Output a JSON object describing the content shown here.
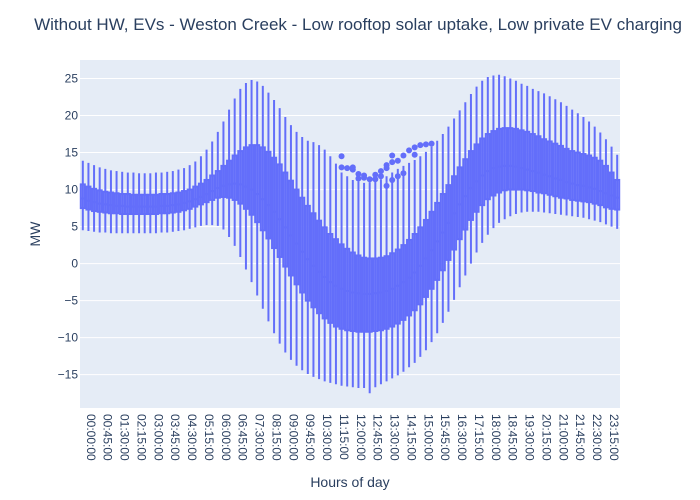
{
  "chart_data": {
    "type": "box",
    "title": "Without HW, EVs - Weston Creek - Low rooftop solar uptake, Low private EV charging",
    "xlabel": "Hours of day",
    "ylabel": "MW",
    "ylim": [
      -19.5,
      27.5
    ],
    "yticks": [
      25,
      20,
      15,
      10,
      5,
      0,
      -5,
      -10,
      -15
    ],
    "grid": true,
    "colors": {
      "series": "#636efa",
      "plot_bg": "#e5ecf6",
      "grid": "#ffffff",
      "text": "#2a3f5f"
    },
    "x_categories": [
      "00:00:00",
      "00:15:00",
      "00:30:00",
      "00:45:00",
      "01:00:00",
      "01:15:00",
      "01:30:00",
      "01:45:00",
      "02:00:00",
      "02:15:00",
      "02:30:00",
      "02:45:00",
      "03:00:00",
      "03:15:00",
      "03:30:00",
      "03:45:00",
      "04:00:00",
      "04:15:00",
      "04:30:00",
      "04:45:00",
      "05:00:00",
      "05:15:00",
      "05:30:00",
      "05:45:00",
      "06:00:00",
      "06:15:00",
      "06:30:00",
      "06:45:00",
      "07:00:00",
      "07:15:00",
      "07:30:00",
      "07:45:00",
      "08:00:00",
      "08:15:00",
      "08:30:00",
      "08:45:00",
      "09:00:00",
      "09:15:00",
      "09:30:00",
      "09:45:00",
      "10:00:00",
      "10:15:00",
      "10:30:00",
      "10:45:00",
      "11:00:00",
      "11:15:00",
      "11:30:00",
      "11:45:00",
      "12:00:00",
      "12:15:00",
      "12:30:00",
      "12:45:00",
      "13:00:00",
      "13:15:00",
      "13:30:00",
      "13:45:00",
      "14:00:00",
      "14:15:00",
      "14:30:00",
      "14:45:00",
      "15:00:00",
      "15:15:00",
      "15:30:00",
      "15:45:00",
      "16:00:00",
      "16:15:00",
      "16:30:00",
      "16:45:00",
      "17:00:00",
      "17:15:00",
      "17:30:00",
      "17:45:00",
      "18:00:00",
      "18:15:00",
      "18:30:00",
      "18:45:00",
      "19:00:00",
      "19:15:00",
      "19:30:00",
      "19:45:00",
      "20:00:00",
      "20:15:00",
      "20:30:00",
      "20:45:00",
      "21:00:00",
      "21:15:00",
      "21:30:00",
      "21:45:00",
      "22:00:00",
      "22:15:00",
      "22:30:00",
      "22:45:00",
      "23:00:00",
      "23:15:00",
      "23:30:00",
      "23:45:00"
    ],
    "x_tick_labels": [
      "00:00:00",
      "00:45:00",
      "01:30:00",
      "02:15:00",
      "03:00:00",
      "03:45:00",
      "04:30:00",
      "05:15:00",
      "06:00:00",
      "06:45:00",
      "07:30:00",
      "08:15:00",
      "09:00:00",
      "09:45:00",
      "10:30:00",
      "11:15:00",
      "12:00:00",
      "12:45:00",
      "13:30:00",
      "14:15:00",
      "15:00:00",
      "15:45:00",
      "16:30:00",
      "17:15:00",
      "18:00:00",
      "18:45:00",
      "19:30:00",
      "20:15:00",
      "21:00:00",
      "21:45:00",
      "22:30:00",
      "23:15:00"
    ],
    "series": [
      {
        "stats": [
          {
            "min": 4.5,
            "q1": 7.5,
            "median": 8.8,
            "q3": 10.7,
            "max": 13.9
          },
          {
            "min": 4.4,
            "q1": 7.3,
            "median": 8.5,
            "q3": 10.4,
            "max": 13.6
          },
          {
            "min": 4.3,
            "q1": 7.1,
            "median": 8.3,
            "q3": 10.1,
            "max": 13.3
          },
          {
            "min": 4.2,
            "q1": 7.0,
            "median": 8.1,
            "q3": 9.9,
            "max": 13.0
          },
          {
            "min": 4.2,
            "q1": 6.9,
            "median": 8.0,
            "q3": 9.7,
            "max": 12.8
          },
          {
            "min": 4.1,
            "q1": 6.8,
            "median": 7.9,
            "q3": 9.6,
            "max": 12.6
          },
          {
            "min": 4.1,
            "q1": 6.8,
            "median": 7.8,
            "q3": 9.5,
            "max": 12.5
          },
          {
            "min": 4.1,
            "q1": 6.7,
            "median": 7.8,
            "q3": 9.4,
            "max": 12.4
          },
          {
            "min": 4.1,
            "q1": 6.7,
            "median": 7.7,
            "q3": 9.4,
            "max": 12.3
          },
          {
            "min": 4.1,
            "q1": 6.7,
            "median": 7.7,
            "q3": 9.3,
            "max": 12.3
          },
          {
            "min": 4.1,
            "q1": 6.7,
            "median": 7.7,
            "q3": 9.3,
            "max": 12.2
          },
          {
            "min": 4.1,
            "q1": 6.7,
            "median": 7.7,
            "q3": 9.3,
            "max": 12.2
          },
          {
            "min": 4.1,
            "q1": 6.7,
            "median": 7.7,
            "q3": 9.3,
            "max": 12.2
          },
          {
            "min": 4.1,
            "q1": 6.7,
            "median": 7.7,
            "q3": 9.3,
            "max": 12.3
          },
          {
            "min": 4.2,
            "q1": 6.8,
            "median": 7.8,
            "q3": 9.4,
            "max": 12.3
          },
          {
            "min": 4.2,
            "q1": 6.8,
            "median": 7.8,
            "q3": 9.4,
            "max": 12.4
          },
          {
            "min": 4.3,
            "q1": 6.9,
            "median": 7.9,
            "q3": 9.5,
            "max": 12.5
          },
          {
            "min": 4.4,
            "q1": 7.0,
            "median": 8.0,
            "q3": 9.6,
            "max": 12.7
          },
          {
            "min": 4.5,
            "q1": 7.2,
            "median": 8.2,
            "q3": 9.8,
            "max": 12.9
          },
          {
            "min": 4.7,
            "q1": 7.4,
            "median": 8.4,
            "q3": 10.0,
            "max": 13.3
          },
          {
            "min": 4.9,
            "q1": 7.7,
            "median": 8.7,
            "q3": 10.4,
            "max": 13.8
          },
          {
            "min": 5.1,
            "q1": 8.0,
            "median": 9.0,
            "q3": 10.8,
            "max": 14.5
          },
          {
            "min": 5.2,
            "q1": 8.3,
            "median": 9.4,
            "q3": 11.3,
            "max": 15.4
          },
          {
            "min": 5.2,
            "q1": 8.6,
            "median": 9.8,
            "q3": 11.9,
            "max": 16.5
          },
          {
            "min": 5.1,
            "q1": 8.9,
            "median": 10.2,
            "q3": 12.5,
            "max": 17.8
          },
          {
            "min": 4.6,
            "q1": 9.0,
            "median": 10.5,
            "q3": 13.2,
            "max": 19.2
          },
          {
            "min": 3.6,
            "q1": 8.9,
            "median": 10.7,
            "q3": 13.9,
            "max": 20.8
          },
          {
            "min": 2.4,
            "q1": 8.6,
            "median": 10.8,
            "q3": 14.6,
            "max": 22.3
          },
          {
            "min": 0.9,
            "q1": 8.1,
            "median": 10.7,
            "q3": 15.2,
            "max": 23.6
          },
          {
            "min": -0.8,
            "q1": 7.4,
            "median": 10.4,
            "q3": 15.7,
            "max": 24.4
          },
          {
            "min": -2.5,
            "q1": 6.6,
            "median": 10.0,
            "q3": 16.0,
            "max": 24.8
          },
          {
            "min": -4.3,
            "q1": 5.6,
            "median": 9.4,
            "q3": 16.0,
            "max": 24.6
          },
          {
            "min": -6.1,
            "q1": 4.5,
            "median": 8.7,
            "q3": 15.7,
            "max": 24.0
          },
          {
            "min": -7.8,
            "q1": 3.4,
            "median": 7.9,
            "q3": 15.1,
            "max": 23.1
          },
          {
            "min": -9.4,
            "q1": 2.1,
            "median": 7.0,
            "q3": 14.3,
            "max": 22.1
          },
          {
            "min": -10.8,
            "q1": 0.9,
            "median": 6.0,
            "q3": 13.4,
            "max": 21.0
          },
          {
            "min": -12.0,
            "q1": -0.4,
            "median": 4.9,
            "q3": 12.3,
            "max": 19.8
          },
          {
            "min": -13.0,
            "q1": -1.6,
            "median": 3.8,
            "q3": 11.2,
            "max": 18.7
          },
          {
            "min": -13.8,
            "q1": -2.8,
            "median": 2.7,
            "q3": 10.0,
            "max": 17.8
          },
          {
            "min": -14.4,
            "q1": -3.9,
            "median": 1.6,
            "q3": 8.9,
            "max": 17.1
          },
          {
            "min": -14.9,
            "q1": -5.0,
            "median": 0.6,
            "q3": 7.8,
            "max": 16.6
          },
          {
            "min": -15.3,
            "q1": -5.9,
            "median": -0.3,
            "q3": 6.8,
            "max": 16.4
          },
          {
            "min": -15.6,
            "q1": -6.7,
            "median": -1.1,
            "q3": 5.8,
            "max": 16.0
          },
          {
            "min": -15.9,
            "q1": -7.4,
            "median": -1.8,
            "q3": 4.9,
            "max": 15.4
          },
          {
            "min": -16.1,
            "q1": -8.0,
            "median": -2.5,
            "q3": 4.0,
            "max": 14.5
          },
          {
            "min": -16.3,
            "q1": -8.5,
            "median": -3.0,
            "q3": 3.3,
            "max": 13.5
          },
          {
            "min": -16.5,
            "q1": -8.8,
            "median": -3.4,
            "q3": 2.6,
            "max": 12.3,
            "outliers": [
              13.0,
              14.5
            ]
          },
          {
            "min": -16.6,
            "q1": -9.0,
            "median": -3.7,
            "q3": 2.0,
            "max": 11.8,
            "outliers": [
              12.9
            ]
          },
          {
            "min": -16.7,
            "q1": -9.1,
            "median": -3.9,
            "q3": 1.5,
            "max": 11.3,
            "outliers": [
              12.7,
              13.0
            ]
          },
          {
            "min": -16.8,
            "q1": -9.2,
            "median": -4.0,
            "q3": 1.1,
            "max": 11.1,
            "outliers": [
              11.5,
              12.1
            ]
          },
          {
            "min": -16.8,
            "q1": -9.2,
            "median": -4.1,
            "q3": 0.8,
            "max": 10.9,
            "outliers": [
              11.6,
              11.9
            ]
          },
          {
            "min": -17.5,
            "q1": -9.2,
            "median": -4.1,
            "q3": 0.7,
            "max": 11.0,
            "outliers": [
              11.4
            ]
          },
          {
            "min": -16.7,
            "q1": -9.1,
            "median": -4.0,
            "q3": 0.7,
            "max": 11.2,
            "outliers": [
              11.4,
              12.0
            ]
          },
          {
            "min": -16.3,
            "q1": -9.0,
            "median": -3.9,
            "q3": 0.8,
            "max": 11.4,
            "outliers": [
              11.8,
              12.5
            ]
          },
          {
            "min": -15.9,
            "q1": -8.8,
            "median": -3.7,
            "q3": 1.0,
            "max": 11.8,
            "outliers": [
              12.9,
              13.3,
              10.5
            ]
          },
          {
            "min": -15.5,
            "q1": -8.5,
            "median": -3.4,
            "q3": 1.4,
            "max": 12.3,
            "outliers": [
              13.7,
              14.6,
              11.3
            ]
          },
          {
            "min": -15.1,
            "q1": -8.1,
            "median": -3.0,
            "q3": 1.9,
            "max": 12.8,
            "outliers": [
              13.9,
              11.8
            ]
          },
          {
            "min": -14.6,
            "q1": -7.6,
            "median": -2.5,
            "q3": 2.5,
            "max": 13.2,
            "outliers": [
              14.6,
              12.2
            ]
          },
          {
            "min": -14.0,
            "q1": -7.0,
            "median": -1.9,
            "q3": 3.2,
            "max": 13.6,
            "outliers": [
              15.3
            ]
          },
          {
            "min": -13.4,
            "q1": -6.3,
            "median": -1.2,
            "q3": 4.0,
            "max": 14.0,
            "outliers": [
              15.7,
              14.7
            ]
          },
          {
            "min": -12.6,
            "q1": -5.5,
            "median": -0.3,
            "q3": 4.9,
            "max": 14.5,
            "outliers": [
              16.0
            ]
          },
          {
            "min": -11.7,
            "q1": -4.5,
            "median": 0.7,
            "q3": 5.9,
            "max": 15.1,
            "outliers": [
              16.1
            ]
          },
          {
            "min": -10.6,
            "q1": -3.4,
            "median": 1.8,
            "q3": 7.0,
            "max": 15.8,
            "outliers": [
              16.2
            ]
          },
          {
            "min": -9.4,
            "q1": -2.2,
            "median": 3.0,
            "q3": 8.2,
            "max": 16.6
          },
          {
            "min": -8.0,
            "q1": -0.9,
            "median": 4.2,
            "q3": 9.4,
            "max": 17.5
          },
          {
            "min": -6.5,
            "q1": 0.5,
            "median": 5.5,
            "q3": 10.6,
            "max": 18.5
          },
          {
            "min": -4.9,
            "q1": 1.9,
            "median": 6.8,
            "q3": 11.8,
            "max": 19.6
          },
          {
            "min": -3.2,
            "q1": 3.3,
            "median": 8.0,
            "q3": 13.0,
            "max": 20.7
          },
          {
            "min": -1.6,
            "q1": 4.6,
            "median": 9.1,
            "q3": 14.1,
            "max": 21.8
          },
          {
            "min": 0.0,
            "q1": 5.9,
            "median": 10.2,
            "q3": 15.2,
            "max": 22.9
          },
          {
            "min": 1.5,
            "q1": 7.0,
            "median": 11.1,
            "q3": 16.1,
            "max": 23.9
          },
          {
            "min": 2.8,
            "q1": 7.9,
            "median": 11.9,
            "q3": 16.9,
            "max": 24.7
          },
          {
            "min": 3.9,
            "q1": 8.7,
            "median": 12.5,
            "q3": 17.5,
            "max": 25.2
          },
          {
            "min": 4.8,
            "q1": 9.2,
            "median": 12.9,
            "q3": 17.9,
            "max": 25.4
          },
          {
            "min": 5.5,
            "q1": 9.6,
            "median": 13.1,
            "q3": 18.2,
            "max": 25.5
          },
          {
            "min": 6.0,
            "q1": 9.9,
            "median": 13.2,
            "q3": 18.3,
            "max": 25.3
          },
          {
            "min": 6.4,
            "q1": 10.0,
            "median": 13.2,
            "q3": 18.3,
            "max": 25.0
          },
          {
            "min": 6.7,
            "q1": 10.0,
            "median": 13.1,
            "q3": 18.2,
            "max": 24.7
          },
          {
            "min": 6.9,
            "q1": 10.0,
            "median": 12.9,
            "q3": 18.0,
            "max": 24.3
          },
          {
            "min": 7.0,
            "q1": 9.9,
            "median": 12.7,
            "q3": 17.8,
            "max": 24.0
          },
          {
            "min": 7.0,
            "q1": 9.8,
            "median": 12.5,
            "q3": 17.5,
            "max": 23.6
          },
          {
            "min": 7.0,
            "q1": 9.6,
            "median": 12.3,
            "q3": 17.2,
            "max": 23.3
          },
          {
            "min": 6.9,
            "q1": 9.5,
            "median": 12.0,
            "q3": 16.8,
            "max": 23.0
          },
          {
            "min": 6.8,
            "q1": 9.3,
            "median": 11.8,
            "q3": 16.5,
            "max": 22.6
          },
          {
            "min": 6.7,
            "q1": 9.1,
            "median": 11.5,
            "q3": 16.2,
            "max": 22.2
          },
          {
            "min": 6.6,
            "q1": 8.9,
            "median": 11.3,
            "q3": 15.9,
            "max": 21.8
          },
          {
            "min": 6.5,
            "q1": 8.8,
            "median": 11.0,
            "q3": 15.5,
            "max": 21.3
          },
          {
            "min": 6.4,
            "q1": 8.6,
            "median": 10.8,
            "q3": 15.2,
            "max": 20.8
          },
          {
            "min": 6.3,
            "q1": 8.5,
            "median": 10.6,
            "q3": 15.0,
            "max": 20.3
          },
          {
            "min": 6.2,
            "q1": 8.4,
            "median": 10.5,
            "q3": 14.8,
            "max": 19.8
          },
          {
            "min": 6.0,
            "q1": 8.3,
            "median": 10.3,
            "q3": 14.6,
            "max": 19.2
          },
          {
            "min": 5.8,
            "q1": 8.1,
            "median": 10.1,
            "q3": 14.3,
            "max": 18.5
          },
          {
            "min": 5.6,
            "q1": 7.9,
            "median": 9.8,
            "q3": 13.9,
            "max": 17.7
          },
          {
            "min": 5.3,
            "q1": 7.6,
            "median": 9.5,
            "q3": 13.2,
            "max": 16.8
          },
          {
            "min": 5.0,
            "q1": 7.4,
            "median": 9.2,
            "q3": 12.3,
            "max": 15.8
          },
          {
            "min": 4.7,
            "q1": 7.3,
            "median": 8.9,
            "q3": 11.3,
            "max": 14.7
          }
        ]
      }
    ]
  }
}
